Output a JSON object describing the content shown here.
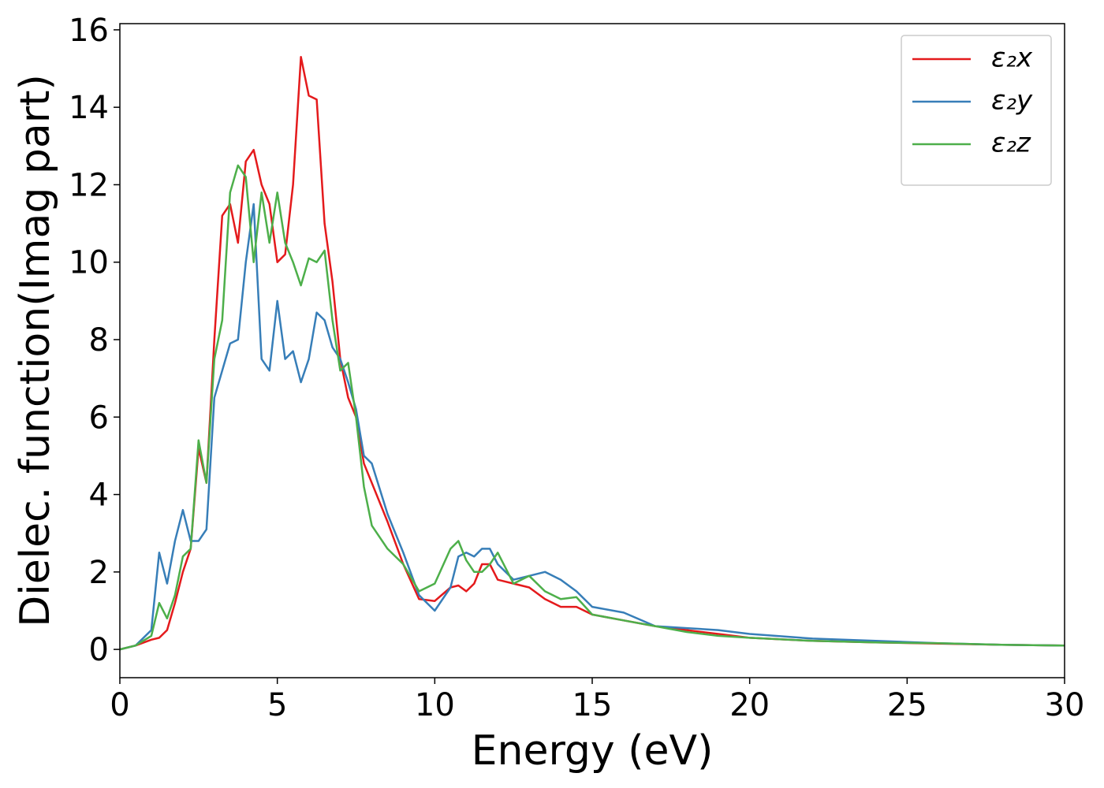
{
  "chart_data": {
    "type": "line",
    "xlabel": "Energy (eV)",
    "ylabel": "Dielec. function(Imag part)",
    "x": [
      0,
      0.5,
      1,
      1.25,
      1.5,
      1.75,
      2,
      2.25,
      2.5,
      2.75,
      3,
      3.25,
      3.5,
      3.75,
      4,
      4.25,
      4.5,
      4.75,
      5,
      5.25,
      5.5,
      5.75,
      6,
      6.25,
      6.5,
      6.75,
      7,
      7.25,
      7.5,
      7.75,
      8,
      8.5,
      9,
      9.5,
      10,
      10.5,
      10.75,
      11,
      11.25,
      11.5,
      11.75,
      12,
      12.5,
      13,
      13.5,
      14,
      14.5,
      15,
      16,
      17,
      18,
      19,
      20,
      22,
      24,
      26,
      28,
      30
    ],
    "series": [
      {
        "name": "ε₂x",
        "color": "#e41a1c",
        "values": [
          0,
          0.1,
          0.25,
          0.3,
          0.5,
          1.2,
          2.0,
          2.6,
          5.2,
          4.3,
          8,
          11.2,
          11.5,
          10.5,
          12.6,
          12.9,
          12,
          11.5,
          10,
          10.2,
          12,
          15.3,
          14.3,
          14.2,
          11,
          9.5,
          7.5,
          6.5,
          6,
          4.8,
          4.3,
          3.3,
          2.2,
          1.3,
          1.25,
          1.6,
          1.65,
          1.5,
          1.7,
          2.2,
          2.2,
          1.8,
          1.7,
          1.6,
          1.3,
          1.1,
          1.1,
          0.9,
          0.75,
          0.6,
          0.5,
          0.4,
          0.3,
          0.22,
          0.18,
          0.15,
          0.12,
          0.1
        ]
      },
      {
        "name": "ε₂y",
        "color": "#377eb8",
        "values": [
          0,
          0.1,
          0.5,
          2.5,
          1.7,
          2.8,
          3.6,
          2.8,
          2.8,
          3.1,
          6.5,
          7.2,
          7.9,
          8.0,
          10,
          11.5,
          7.5,
          7.2,
          9,
          7.5,
          7.7,
          6.9,
          7.5,
          8.7,
          8.5,
          7.8,
          7.5,
          6.9,
          6.2,
          5.0,
          4.8,
          3.5,
          2.5,
          1.4,
          1.0,
          1.6,
          2.4,
          2.5,
          2.4,
          2.6,
          2.6,
          2.2,
          1.8,
          1.9,
          2.0,
          1.8,
          1.5,
          1.1,
          0.95,
          0.6,
          0.55,
          0.5,
          0.4,
          0.28,
          0.22,
          0.16,
          0.12,
          0.1
        ]
      },
      {
        "name": "ε₂z",
        "color": "#4daf4a",
        "values": [
          0,
          0.1,
          0.35,
          1.2,
          0.8,
          1.4,
          2.4,
          2.6,
          5.4,
          4.3,
          7.5,
          8.5,
          11.8,
          12.5,
          12.2,
          10,
          11.8,
          10.5,
          11.8,
          10.5,
          10.0,
          9.4,
          10.1,
          10.0,
          10.3,
          8.5,
          7.2,
          7.4,
          6,
          4.2,
          3.2,
          2.6,
          2.2,
          1.5,
          1.7,
          2.6,
          2.8,
          2.3,
          2.0,
          2.0,
          2.2,
          2.5,
          1.7,
          1.9,
          1.5,
          1.3,
          1.35,
          0.9,
          0.75,
          0.6,
          0.45,
          0.35,
          0.3,
          0.22,
          0.18,
          0.16,
          0.12,
          0.1
        ]
      }
    ],
    "xlim": [
      0,
      30
    ],
    "xticks": [
      0,
      5,
      10,
      15,
      20,
      25,
      30
    ],
    "ylim": [
      -0.73,
      16.16
    ],
    "yticks": [
      0,
      2,
      4,
      6,
      8,
      10,
      12,
      14,
      16
    ],
    "grid": false,
    "legend": "upper right"
  }
}
